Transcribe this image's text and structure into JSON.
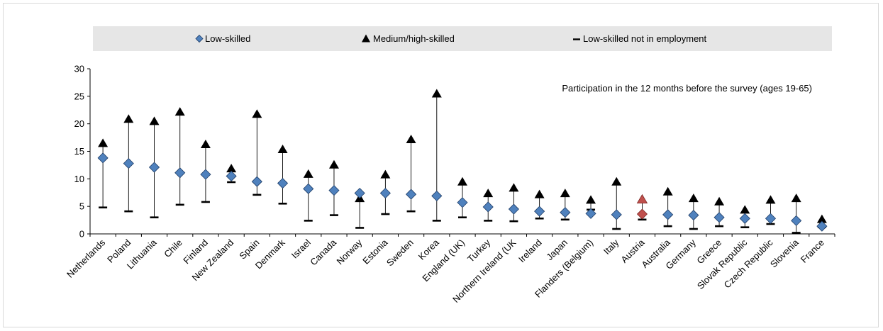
{
  "chart_data": {
    "type": "scatter",
    "annotation": "Participation in the 12 months before the survey (ages 19-65)",
    "legend_position": "top",
    "ylim": [
      0,
      30
    ],
    "yticks": [
      0,
      5,
      10,
      15,
      20,
      25,
      30
    ],
    "grid": false,
    "colors": {
      "low_skilled": "#4f81bd",
      "medium_high": "#000000",
      "highlight": "#c0504d",
      "legend_band": "#e6e6e6"
    },
    "highlight_category": "Austria",
    "categories": [
      "Netherlands",
      "Poland",
      "Lithuania",
      "Chile",
      "Finland",
      "New Zealand",
      "Spain",
      "Denmark",
      "Israel",
      "Canada",
      "Norway",
      "Estonia",
      "Sweden",
      "Korea",
      "England (UK)",
      "Turkey",
      "Northern Ireland (UK",
      "Ireland",
      "Japan",
      "Flanders (Belgium)",
      "Italy",
      "Austria",
      "Australia",
      "Germany",
      "Greece",
      "Slovak Republic",
      "Czech Republic",
      "Slovenia",
      "France"
    ],
    "series": [
      {
        "name": "Low-skilled",
        "marker": "diamond",
        "values": [
          13.8,
          12.8,
          12.1,
          11.1,
          10.8,
          10.5,
          9.5,
          9.2,
          8.2,
          7.9,
          7.4,
          7.4,
          7.2,
          6.9,
          5.7,
          4.9,
          4.5,
          4.1,
          3.9,
          3.7,
          3.5,
          3.6,
          3.5,
          3.4,
          3.0,
          2.8,
          2.8,
          2.4,
          1.4
        ]
      },
      {
        "name": "Medium/high-skilled",
        "marker": "triangle",
        "values": [
          16.3,
          20.7,
          20.3,
          22.0,
          16.1,
          11.7,
          21.6,
          15.2,
          10.7,
          12.4,
          6.3,
          10.6,
          17.0,
          25.3,
          9.3,
          7.2,
          8.2,
          7.0,
          7.2,
          6.0,
          9.3,
          6.1,
          7.5,
          6.3,
          5.7,
          4.2,
          6.0,
          6.3,
          2.5
        ]
      },
      {
        "name": "Low-skilled not in employment",
        "marker": "dash",
        "values": [
          4.8,
          4.1,
          3.0,
          5.3,
          5.8,
          9.4,
          7.1,
          5.5,
          2.4,
          3.4,
          1.1,
          3.6,
          4.1,
          2.4,
          3.0,
          2.4,
          2.3,
          2.8,
          2.6,
          4.4,
          0.9,
          2.6,
          1.4,
          0.9,
          1.4,
          1.2,
          1.8,
          0.2,
          1.2
        ]
      }
    ]
  }
}
